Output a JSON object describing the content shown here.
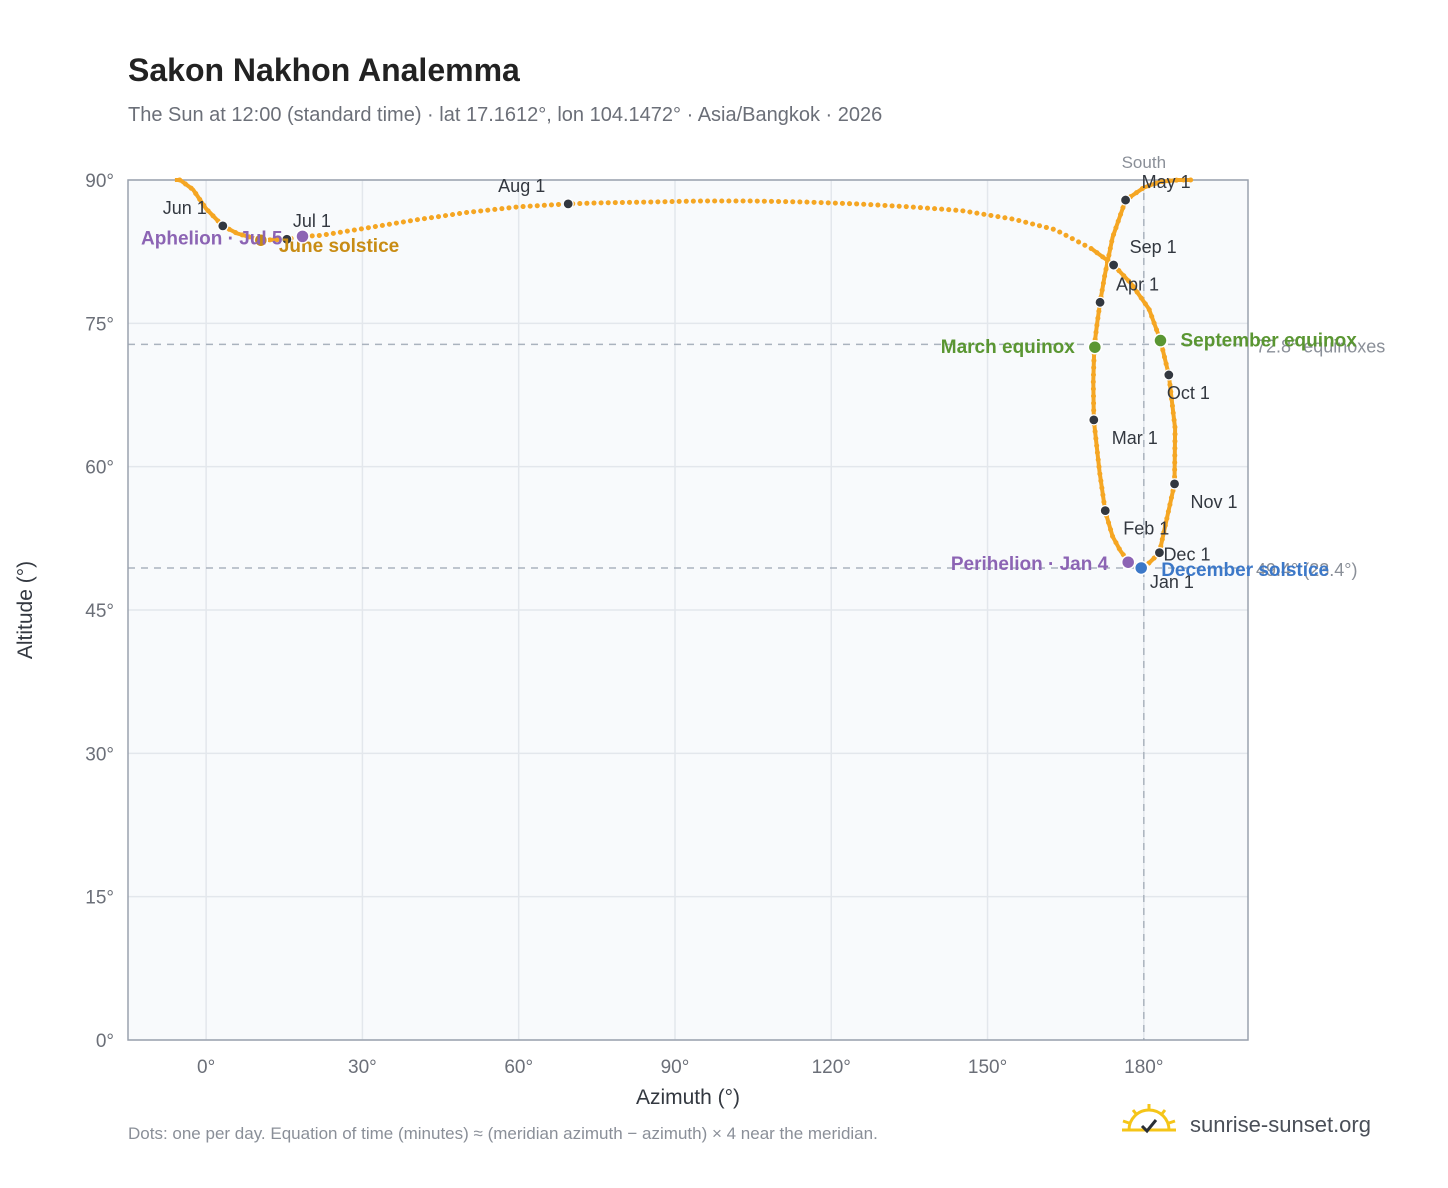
{
  "header": {
    "title": "Sakon Nakhon Analemma",
    "subtitle": "The Sun at 12:00 (standard time) · lat 17.1612°, lon 104.1472° · Asia/Bangkok · 2026"
  },
  "footer": {
    "note": "Dots: one per day. Equation of time (minutes) ≈ (meridian azimuth − azimuth) × 4 near the meridian.",
    "brand": "sunrise-sunset.org"
  },
  "colors": {
    "curve": "#f5a623",
    "month_marker": "#333840",
    "equinox": "#5a9632",
    "june_solstice": "#c88c14",
    "december_solstice": "#3c78c8",
    "apsis": "#8c64b4",
    "plot_bg": "#f8fafc",
    "grid": "#e3e7ec",
    "axis_border": "#9aa2ae",
    "reference_line": "#aab3be"
  },
  "chart_data": {
    "type": "scatter",
    "xlabel": "Azimuth (°)",
    "ylabel": "Altitude (°)",
    "xlim": [
      -15,
      200
    ],
    "ylim": [
      0,
      90
    ],
    "x_ticks": [
      0,
      30,
      60,
      90,
      120,
      150,
      180
    ],
    "x_tick_labels": [
      "0°",
      "30°",
      "60°",
      "90°",
      "120°",
      "150°",
      "180°"
    ],
    "y_ticks": [
      0,
      15,
      30,
      45,
      60,
      75,
      90
    ],
    "y_tick_labels": [
      "0°",
      "15°",
      "30°",
      "45°",
      "60°",
      "75°",
      "90°"
    ],
    "grid": true,
    "meridian": {
      "azimuth": 180,
      "label": "South"
    },
    "reference_lines": [
      {
        "altitude": 72.8,
        "label": "72.8° equinoxes"
      },
      {
        "altitude": 49.4,
        "label": "49.4° (23.4°)"
      }
    ],
    "analemma_path": [
      [
        180.0,
        49.4
      ],
      [
        182.5,
        50.7
      ],
      [
        183.0,
        51.0
      ],
      [
        184.4,
        54.5
      ],
      [
        185.9,
        58.2
      ],
      [
        186.0,
        64.0
      ],
      [
        184.8,
        69.6
      ],
      [
        183.2,
        73.2
      ],
      [
        181.0,
        76.5
      ],
      [
        177.5,
        79.2
      ],
      [
        174.2,
        81.1
      ],
      [
        170.0,
        82.8
      ],
      [
        163.0,
        84.8
      ],
      [
        155.0,
        85.9
      ],
      [
        145.0,
        86.8
      ],
      [
        135.0,
        87.2
      ],
      [
        125.0,
        87.5
      ],
      [
        115.0,
        87.7
      ],
      [
        105.0,
        87.8
      ],
      [
        95.0,
        87.8
      ],
      [
        85.0,
        87.7
      ],
      [
        75.0,
        87.6
      ],
      [
        69.5,
        87.5
      ],
      [
        60.0,
        87.2
      ],
      [
        50.0,
        86.6
      ],
      [
        40.0,
        85.8
      ],
      [
        30.0,
        84.9
      ],
      [
        22.0,
        84.2
      ],
      [
        18.5,
        84.1
      ],
      [
        15.5,
        83.8
      ],
      [
        10.5,
        83.7
      ],
      [
        6.0,
        84.4
      ],
      [
        3.2,
        85.2
      ],
      [
        0.0,
        87.0
      ],
      [
        -2.5,
        89.0
      ],
      [
        -5.0,
        90.0
      ],
      [
        -6.0,
        90.0
      ],
      [
        null,
        null
      ],
      [
        189.0,
        90.0
      ],
      [
        186.5,
        90.0
      ],
      [
        183.0,
        89.8
      ],
      [
        180.0,
        89.2
      ],
      [
        176.5,
        87.9
      ],
      [
        174.0,
        84.0
      ],
      [
        172.5,
        80.0
      ],
      [
        171.6,
        77.2
      ],
      [
        171.0,
        74.8
      ],
      [
        170.5,
        72.6
      ],
      [
        170.3,
        69.0
      ],
      [
        170.4,
        64.9
      ],
      [
        171.5,
        59.5
      ],
      [
        172.6,
        55.3
      ],
      [
        174.0,
        52.7
      ],
      [
        175.5,
        51.2
      ],
      [
        177.0,
        50.1
      ],
      [
        178.5,
        49.6
      ],
      [
        180.0,
        49.4
      ]
    ],
    "month_markers": [
      {
        "label": "Jan 1",
        "azimuth": 180.0,
        "altitude": 49.4
      },
      {
        "label": "Feb 1",
        "azimuth": 172.6,
        "altitude": 55.4
      },
      {
        "label": "Mar 1",
        "azimuth": 170.4,
        "altitude": 64.9
      },
      {
        "label": "Apr 1",
        "azimuth": 171.6,
        "altitude": 77.2
      },
      {
        "label": "May 1",
        "azimuth": 176.5,
        "altitude": 87.9
      },
      {
        "label": "Jun 1",
        "azimuth": 3.2,
        "altitude": 85.2
      },
      {
        "label": "Jul 1",
        "azimuth": 15.5,
        "altitude": 83.8
      },
      {
        "label": "Aug 1",
        "azimuth": 69.5,
        "altitude": 87.5
      },
      {
        "label": "Sep 1",
        "azimuth": 174.2,
        "altitude": 81.1
      },
      {
        "label": "Oct 1",
        "azimuth": 184.8,
        "altitude": 69.6
      },
      {
        "label": "Nov 1",
        "azimuth": 185.9,
        "altitude": 58.2
      },
      {
        "label": "Dec 1",
        "azimuth": 183.0,
        "altitude": 51.0
      }
    ],
    "events": [
      {
        "label": "March equinox",
        "azimuth": 170.6,
        "altitude": 72.5,
        "kind": "equinox"
      },
      {
        "label": "September equinox",
        "azimuth": 183.2,
        "altitude": 73.2,
        "kind": "equinox"
      },
      {
        "label": "June solstice",
        "azimuth": 10.5,
        "altitude": 83.7,
        "kind": "june_solstice"
      },
      {
        "label": "December solstice",
        "azimuth": 179.5,
        "altitude": 49.4,
        "kind": "december_solstice"
      },
      {
        "label": "Perihelion · Jan 4",
        "azimuth": 177.0,
        "altitude": 50.0,
        "kind": "apsis"
      },
      {
        "label": "Aphelion · Jul 5",
        "azimuth": 18.5,
        "altitude": 84.1,
        "kind": "apsis"
      }
    ]
  }
}
